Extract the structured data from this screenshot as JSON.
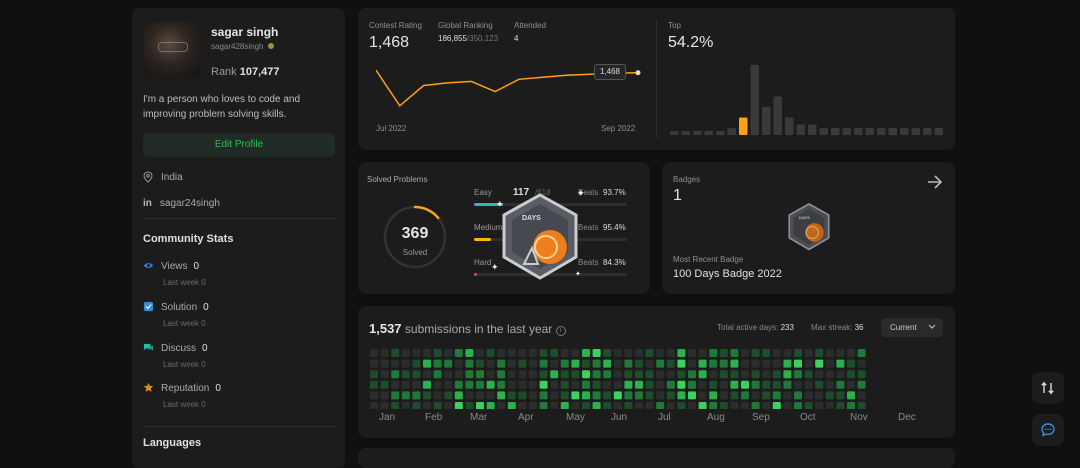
{
  "profile": {
    "name": "sagar singh",
    "handle": "sagar428singh",
    "rank_label": "Rank",
    "rank_value": "107,477",
    "bio": "I'm a person who loves to code and improving problem solving skills.",
    "edit_label": "Edit Profile",
    "location": "India",
    "linkedin": "sagar24singh"
  },
  "community": {
    "title": "Community Stats",
    "items": [
      {
        "label": "Views",
        "value": "0",
        "sub": "Last week",
        "sub_val": "0"
      },
      {
        "label": "Solution",
        "value": "0",
        "sub": "Last week",
        "sub_val": "0"
      },
      {
        "label": "Discuss",
        "value": "0",
        "sub": "Last week",
        "sub_val": "0"
      },
      {
        "label": "Reputation",
        "value": "0",
        "sub": "Last week",
        "sub_val": "0"
      }
    ],
    "languages_title": "Languages"
  },
  "contest": {
    "rating_label": "Contest Rating",
    "rating_value": "1,468",
    "global_label": "Global Ranking",
    "global_value": "186,855",
    "global_total": "/350,123",
    "attended_label": "Attended",
    "attended_value": "4",
    "tooltip": "1,468",
    "start_label": "Jul 2022",
    "end_label": "Sep 2022",
    "top_label": "Top",
    "top_value": "54.2%",
    "rating_points": [
      1510,
      1440,
      1480,
      1485,
      1488,
      1468,
      1492,
      1496,
      1500,
      1502,
      1504,
      1505
    ],
    "histogram": [
      1,
      1,
      1,
      1,
      1,
      2,
      5,
      20,
      8,
      11,
      5,
      3,
      3,
      2,
      2,
      2,
      2,
      2,
      2,
      2,
      2,
      2,
      2,
      2
    ],
    "highlight_index": 6
  },
  "solved": {
    "title": "Solved Problems",
    "total": "369",
    "total_label": "Solved",
    "progress": 0.14,
    "rows": [
      {
        "label": "Easy",
        "count": "117",
        "total": "/618",
        "beats_label": "Beats",
        "beats": "93.7%",
        "fill": 0.19,
        "color": "#2cbbae"
      },
      {
        "label": "Medium",
        "count": "",
        "total": "",
        "beats_label": "Beats",
        "beats": "95.4%",
        "fill": 0.11,
        "color": "#ffb700"
      },
      {
        "label": "Hard",
        "count": "",
        "total": "",
        "beats_label": "Beats",
        "beats": "84.3%",
        "fill": 0.02,
        "color": "#ef4743"
      }
    ],
    "badge_text": "DAYS"
  },
  "badges": {
    "title": "Badges",
    "count": "1",
    "recent_label": "Most Recent Badge",
    "recent_name": "100 Days Badge 2022",
    "badge_text": "DAYS"
  },
  "submissions": {
    "count": "1,537",
    "text": "submissions in the last year",
    "active_label": "Total active days:",
    "active_value": "233",
    "streak_label": "Max streak:",
    "streak_value": "36",
    "select_value": "Current",
    "months": [
      "Jan",
      "Feb",
      "Mar",
      "Apr",
      "May",
      "Jun",
      "Jul",
      "Aug",
      "Sep",
      "Oct",
      "Nov",
      "Dec"
    ]
  },
  "colors": {
    "accent_orange": "#ffa116",
    "green": "#2cbb5d",
    "easy": "#2cbbae",
    "medium": "#ffb700",
    "hard": "#ef4743"
  }
}
